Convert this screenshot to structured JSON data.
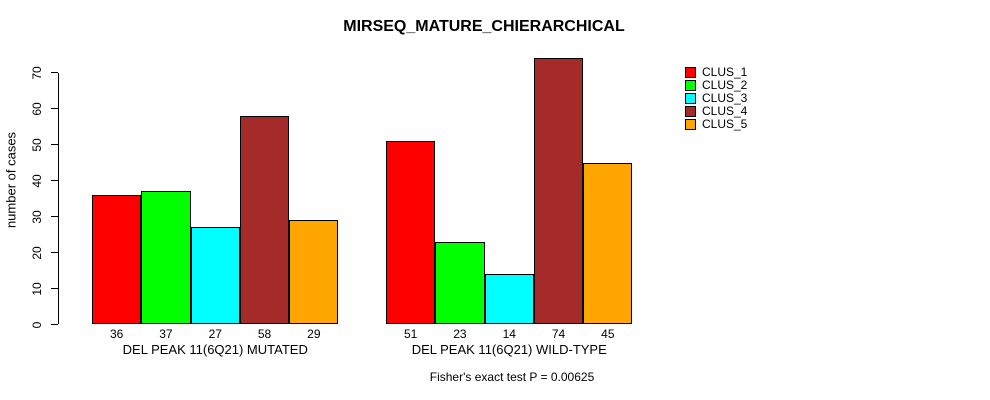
{
  "page": {
    "title": "MIRSEQ_MATURE_CHIERARCHICAL",
    "ylabel": "number of cases",
    "footnote": "Fisher's exact test P = 0.00625"
  },
  "chart_data": {
    "type": "bar",
    "title": "MIRSEQ_MATURE_CHIERARCHICAL",
    "xlabel": "",
    "ylabel": "number of cases",
    "ylim": [
      0,
      70
    ],
    "yticks": [
      0,
      10,
      20,
      30,
      40,
      50,
      60,
      70
    ],
    "grid": false,
    "legend_position": "top-right",
    "categories": [
      "DEL PEAK 11(6Q21) MUTATED",
      "DEL PEAK 11(6Q21) WILD-TYPE"
    ],
    "series": [
      {
        "name": "CLUS_1",
        "color": "#ff0000",
        "values": [
          36,
          51
        ]
      },
      {
        "name": "CLUS_2",
        "color": "#00ff00",
        "values": [
          37,
          23
        ]
      },
      {
        "name": "CLUS_3",
        "color": "#00ffff",
        "values": [
          27,
          14
        ]
      },
      {
        "name": "CLUS_4",
        "color": "#a52a2a",
        "values": [
          58,
          74
        ]
      },
      {
        "name": "CLUS_5",
        "color": "#ffa500",
        "values": [
          29,
          45
        ]
      }
    ],
    "bar_value_labels": true,
    "annotation": "Fisher's exact test P = 0.00625"
  }
}
